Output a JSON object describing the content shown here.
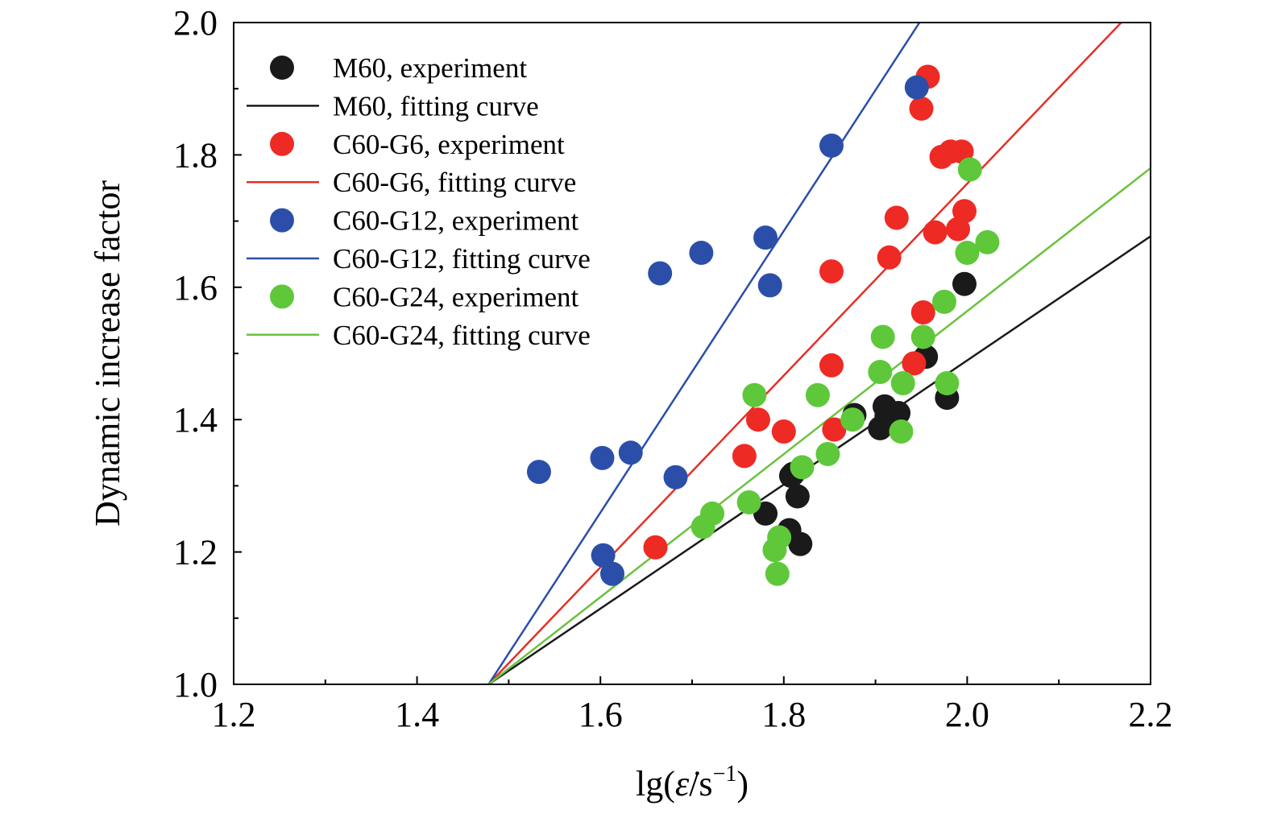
{
  "chart_data": {
    "type": "scatter",
    "title": "",
    "xlabel": {
      "prefix": "lg(",
      "symbol": "ε̇",
      "slash_unit": "/s",
      "superscript": "−1",
      "suffix": ")"
    },
    "ylabel": "Dynamic increase factor",
    "xlim": [
      1.2,
      2.2
    ],
    "ylim": [
      1.0,
      2.0
    ],
    "xticks": [
      "1.2",
      "1.4",
      "1.6",
      "1.8",
      "2.0",
      "2.2"
    ],
    "yticks": [
      "1.0",
      "1.2",
      "1.4",
      "1.6",
      "1.8",
      "2.0"
    ],
    "grid": false,
    "legend_position": "top-left",
    "series": [
      {
        "name": "M60, experiment",
        "kind": "points",
        "color": "#1a1a1a",
        "x": [
          1.78,
          1.81,
          1.806,
          1.818,
          1.815,
          1.808,
          1.877,
          1.905,
          1.91,
          1.912,
          1.925,
          1.955,
          1.978,
          1.997
        ],
        "y": [
          1.258,
          1.318,
          1.233,
          1.212,
          1.284,
          1.315,
          1.407,
          1.387,
          1.42,
          1.405,
          1.41,
          1.495,
          1.433,
          1.605
        ]
      },
      {
        "name": "M60, fitting curve",
        "kind": "line",
        "color": "#1a1a1a",
        "x": [
          1.478,
          2.2
        ],
        "y": [
          1.0,
          1.677
        ]
      },
      {
        "name": "C60-G6, experiment",
        "kind": "points",
        "color": "#ee2a24",
        "x": [
          1.66,
          1.757,
          1.772,
          1.8,
          1.855,
          1.852,
          1.852,
          1.915,
          1.923,
          1.942,
          1.952,
          1.95,
          1.957,
          1.965,
          1.972,
          1.982,
          1.994,
          1.99,
          1.997
        ],
        "y": [
          1.207,
          1.345,
          1.4,
          1.382,
          1.385,
          1.482,
          1.624,
          1.645,
          1.705,
          1.485,
          1.562,
          1.87,
          1.918,
          1.683,
          1.797,
          1.805,
          1.805,
          1.688,
          1.715
        ]
      },
      {
        "name": "C60-G6, fitting curve",
        "kind": "line",
        "color": "#e53027",
        "x": [
          1.478,
          2.168
        ],
        "y": [
          1.0,
          2.0
        ]
      },
      {
        "name": "C60-G12, experiment",
        "kind": "points",
        "color": "#2b4fa9",
        "x": [
          1.533,
          1.602,
          1.633,
          1.603,
          1.613,
          1.665,
          1.682,
          1.71,
          1.78,
          1.785,
          1.852,
          1.945
        ],
        "y": [
          1.321,
          1.342,
          1.35,
          1.195,
          1.167,
          1.621,
          1.313,
          1.652,
          1.675,
          1.603,
          1.814,
          1.902
        ]
      },
      {
        "name": "C60-G12, fitting curve",
        "kind": "line",
        "color": "#2b4fa9",
        "x": [
          1.478,
          1.948
        ],
        "y": [
          1.0,
          2.0
        ]
      },
      {
        "name": "C60-G24, experiment",
        "kind": "points",
        "color": "#5fc83a",
        "x": [
          1.712,
          1.722,
          1.762,
          1.768,
          1.79,
          1.795,
          1.793,
          1.82,
          1.837,
          1.848,
          1.875,
          1.905,
          1.908,
          1.93,
          1.928,
          1.952,
          1.975,
          1.978,
          2.0,
          2.003,
          2.022
        ],
        "y": [
          1.238,
          1.258,
          1.275,
          1.437,
          1.203,
          1.222,
          1.167,
          1.328,
          1.437,
          1.348,
          1.4,
          1.472,
          1.525,
          1.455,
          1.382,
          1.525,
          1.578,
          1.455,
          1.652,
          1.778,
          1.668
        ]
      },
      {
        "name": "C60-G24, fitting curve",
        "kind": "line",
        "color": "#6ac23e",
        "x": [
          1.478,
          2.2
        ],
        "y": [
          1.0,
          1.78
        ]
      }
    ]
  }
}
